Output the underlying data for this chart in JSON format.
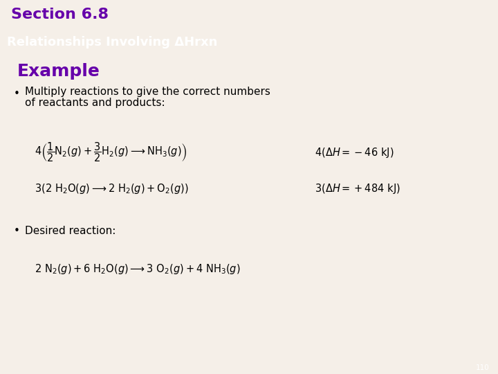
{
  "bg_color": "#f5efe8",
  "section_bar_color": "#cc00aa",
  "section_text": "Section 6.8",
  "header_bar_color": "#111111",
  "header_text": "Relationships Involving ΔHrxn",
  "example_color": "#6600aa",
  "example_text": "Example",
  "bullet1_line1": "Multiply reactions to give the correct numbers",
  "bullet1_line2": "of reactants and products:",
  "bullet2": "Desired reaction:",
  "footer_bar_color": "#888880",
  "page_number": "110",
  "eq1": "$4\\left(\\dfrac{1}{2}\\mathrm{N_2}(g)+\\dfrac{3}{2}\\mathrm{H_2}(g)\\longrightarrow\\mathrm{NH_3}(g)\\right)$",
  "eq1_dh": "$4\\left(\\Delta H = -46\\ \\mathrm{kJ}\\right)$",
  "eq2": "$3\\left(2\\ \\mathrm{H_2O}(g)\\longrightarrow 2\\ \\mathrm{H_2}(g)+\\mathrm{O_2}(g)\\right)$",
  "eq2_dh": "$3\\left(\\Delta H = +484\\ \\mathrm{kJ}\\right)$",
  "eq3": "$2\\ \\mathrm{N_2}(g)+6\\ \\mathrm{H_2O}(g)\\longrightarrow 3\\ \\mathrm{O_2}(g)+4\\ \\mathrm{NH_3}(g)$"
}
